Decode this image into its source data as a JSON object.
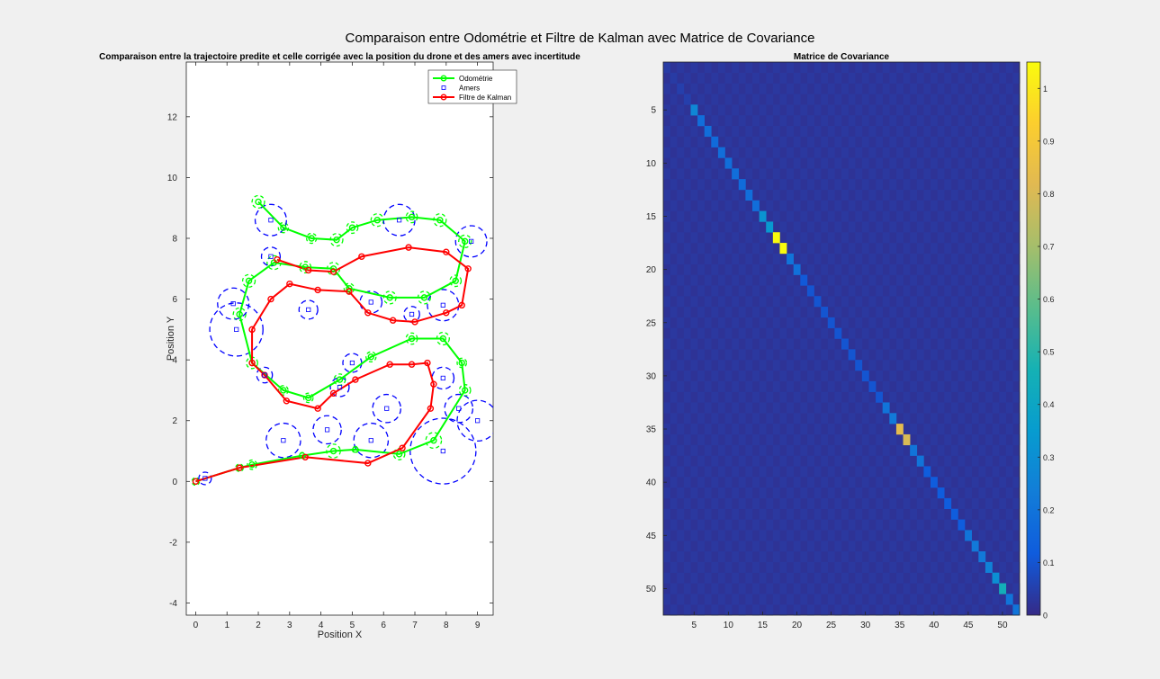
{
  "suptitle": "Comparaison entre Odométrie et Filtre de Kalman avec Matrice de Covariance",
  "chart_data": [
    {
      "type": "line",
      "title": "Comparaison entre la trajectoire predite et celle corrigée avec la position du drone et des amers avec incertitude",
      "xlabel": "Position X",
      "ylabel": "Position Y",
      "xlim": [
        -0.3,
        9.5
      ],
      "ylim": [
        -4.4,
        13.8
      ],
      "xticks": [
        0,
        1,
        2,
        3,
        4,
        5,
        6,
        7,
        8,
        9
      ],
      "yticks": [
        -4,
        -2,
        0,
        2,
        4,
        6,
        8,
        10,
        12
      ],
      "grid": false,
      "legend_location": "top-right",
      "series": [
        {
          "name": "Odométrie",
          "color": "#00ff00",
          "marker": "circle",
          "x": [
            0.0,
            1.4,
            1.8,
            3.4,
            4.4,
            5.1,
            6.5,
            7.6,
            8.6,
            8.5,
            7.9,
            6.9,
            5.6,
            4.6,
            3.6,
            2.8,
            1.8,
            1.4,
            1.7,
            2.5,
            3.5,
            4.4,
            4.9,
            6.2,
            7.3,
            8.3,
            8.6,
            7.8,
            6.9,
            5.8,
            5.0,
            4.5,
            3.7,
            2.8,
            2.0
          ],
          "y": [
            0.0,
            0.45,
            0.55,
            0.85,
            1.0,
            1.05,
            0.9,
            1.35,
            3.0,
            3.9,
            4.7,
            4.7,
            4.1,
            3.35,
            2.75,
            3.0,
            3.9,
            5.5,
            6.6,
            7.2,
            7.05,
            7.0,
            6.35,
            6.05,
            6.05,
            6.6,
            7.9,
            8.6,
            8.7,
            8.6,
            8.35,
            7.95,
            8.0,
            8.35,
            9.2
          ],
          "circle_r": [
            0.12,
            0.12,
            0.15,
            0.1,
            0.22,
            0.1,
            0.18,
            0.25,
            0.18,
            0.15,
            0.2,
            0.18,
            0.16,
            0.18,
            0.15,
            0.15,
            0.18,
            0.2,
            0.2,
            0.22,
            0.18,
            0.2,
            0.16,
            0.2,
            0.2,
            0.18,
            0.2,
            0.2,
            0.18,
            0.2,
            0.18,
            0.2,
            0.16,
            0.16,
            0.2
          ]
        },
        {
          "name": "Amers",
          "color": "#0000ff",
          "marker": "square",
          "x": [
            0.3,
            2.8,
            4.2,
            5.6,
            6.1,
            7.9,
            9.0,
            8.4,
            7.9,
            4.6,
            5.0,
            2.2,
            1.3,
            1.2,
            3.6,
            5.6,
            6.9,
            7.9,
            2.4,
            2.4,
            6.5,
            8.8
          ],
          "y": [
            0.1,
            1.35,
            1.7,
            1.35,
            2.4,
            1.0,
            2.0,
            2.4,
            3.4,
            3.1,
            3.9,
            3.5,
            5.0,
            5.85,
            5.65,
            5.9,
            5.5,
            5.8,
            7.4,
            8.6,
            8.6,
            7.9
          ],
          "circle_r": [
            0.2,
            0.55,
            0.45,
            0.55,
            0.45,
            1.05,
            0.65,
            0.45,
            0.35,
            0.3,
            0.3,
            0.25,
            0.85,
            0.5,
            0.3,
            0.35,
            0.25,
            0.5,
            0.3,
            0.5,
            0.5,
            0.5
          ]
        },
        {
          "name": "Filtre de Kalman",
          "color": "#ff0000",
          "marker": "circle",
          "x": [
            0.0,
            1.4,
            3.5,
            5.5,
            6.6,
            7.5,
            7.6,
            7.4,
            6.9,
            6.2,
            5.1,
            4.4,
            3.9,
            2.9,
            2.2,
            1.8,
            1.8,
            2.4,
            3.0,
            3.9,
            4.9,
            5.5,
            6.3,
            7.0,
            8.0,
            8.5,
            8.7,
            8.0,
            6.8,
            5.3,
            4.4,
            3.6,
            2.6
          ],
          "y": [
            0.0,
            0.45,
            0.8,
            0.6,
            1.1,
            2.4,
            3.2,
            3.9,
            3.85,
            3.85,
            3.35,
            2.9,
            2.4,
            2.65,
            3.5,
            3.9,
            5.0,
            6.0,
            6.5,
            6.3,
            6.25,
            5.55,
            5.3,
            5.25,
            5.55,
            5.8,
            7.0,
            7.55,
            7.7,
            7.4,
            6.9,
            6.95,
            7.3
          ]
        }
      ]
    },
    {
      "type": "heatmap",
      "title": "Matrice de Covariance",
      "size": 52,
      "xticks": [
        5,
        10,
        15,
        20,
        25,
        30,
        35,
        40,
        45,
        50
      ],
      "yticks": [
        5,
        10,
        15,
        20,
        25,
        30,
        35,
        40,
        45,
        50
      ],
      "clim": [
        0,
        1.05
      ],
      "colorbar_ticks": [
        0,
        0.1,
        0.2,
        0.3,
        0.4,
        0.5,
        0.6,
        0.7,
        0.8,
        0.9,
        1
      ],
      "colormap": "parula",
      "diagonal_values": [
        0.04,
        0.04,
        0.05,
        0.05,
        0.27,
        0.18,
        0.18,
        0.17,
        0.18,
        0.18,
        0.18,
        0.17,
        0.18,
        0.18,
        0.32,
        0.34,
        1.05,
        1.05,
        0.2,
        0.19,
        0.11,
        0.1,
        0.1,
        0.1,
        0.1,
        0.1,
        0.1,
        0.1,
        0.1,
        0.1,
        0.1,
        0.1,
        0.2,
        0.22,
        0.83,
        0.8,
        0.2,
        0.2,
        0.12,
        0.12,
        0.12,
        0.12,
        0.12,
        0.12,
        0.2,
        0.22,
        0.22,
        0.25,
        0.3,
        0.45,
        0.2,
        0.2
      ],
      "offdiag_background": 0.02
    }
  ]
}
